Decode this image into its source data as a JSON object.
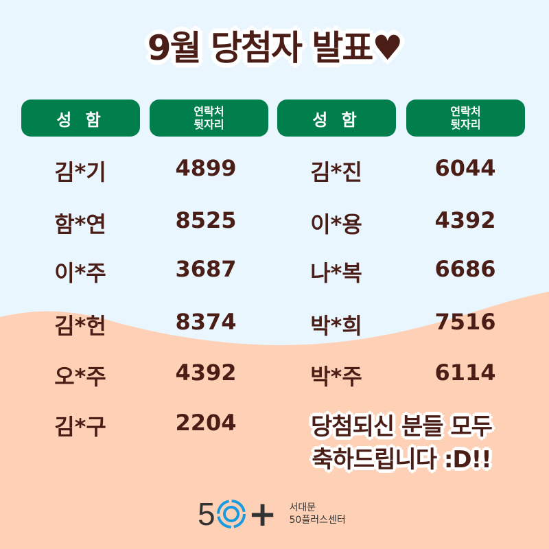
{
  "title": "9월 당첨자 발표♥",
  "headers": [
    {
      "label": "성 함"
    },
    {
      "label_line1": "연락처",
      "label_line2": "뒷자리"
    },
    {
      "label": "성 함"
    },
    {
      "label_line1": "연락처",
      "label_line2": "뒷자리"
    }
  ],
  "left": [
    {
      "name": "김*기",
      "phone": "4899"
    },
    {
      "name": "함*연",
      "phone": "8525"
    },
    {
      "name": "이*주",
      "phone": "3687"
    },
    {
      "name": "김*헌",
      "phone": "8374"
    },
    {
      "name": "오*주",
      "phone": "4392"
    },
    {
      "name": "김*구",
      "phone": "2204"
    }
  ],
  "right": [
    {
      "name": "김*진",
      "phone": "6044"
    },
    {
      "name": "이*용",
      "phone": "4392"
    },
    {
      "name": "나*복",
      "phone": "6686"
    },
    {
      "name": "박*희",
      "phone": "7516"
    },
    {
      "name": "박*주",
      "phone": "6114"
    }
  ],
  "message": {
    "line1": "당첨되신 분들 모두",
    "line2": "축하드립니다 :D!!"
  },
  "logo": {
    "five": "5",
    "plus": "+",
    "line1": "서대문",
    "line2": "50플러스센터"
  },
  "colors": {
    "background": "#e9f6fe",
    "wave": "#fed0b5",
    "header": "#007e4b",
    "text": "#4a1e17",
    "logo_ring": "#1a9be0"
  }
}
